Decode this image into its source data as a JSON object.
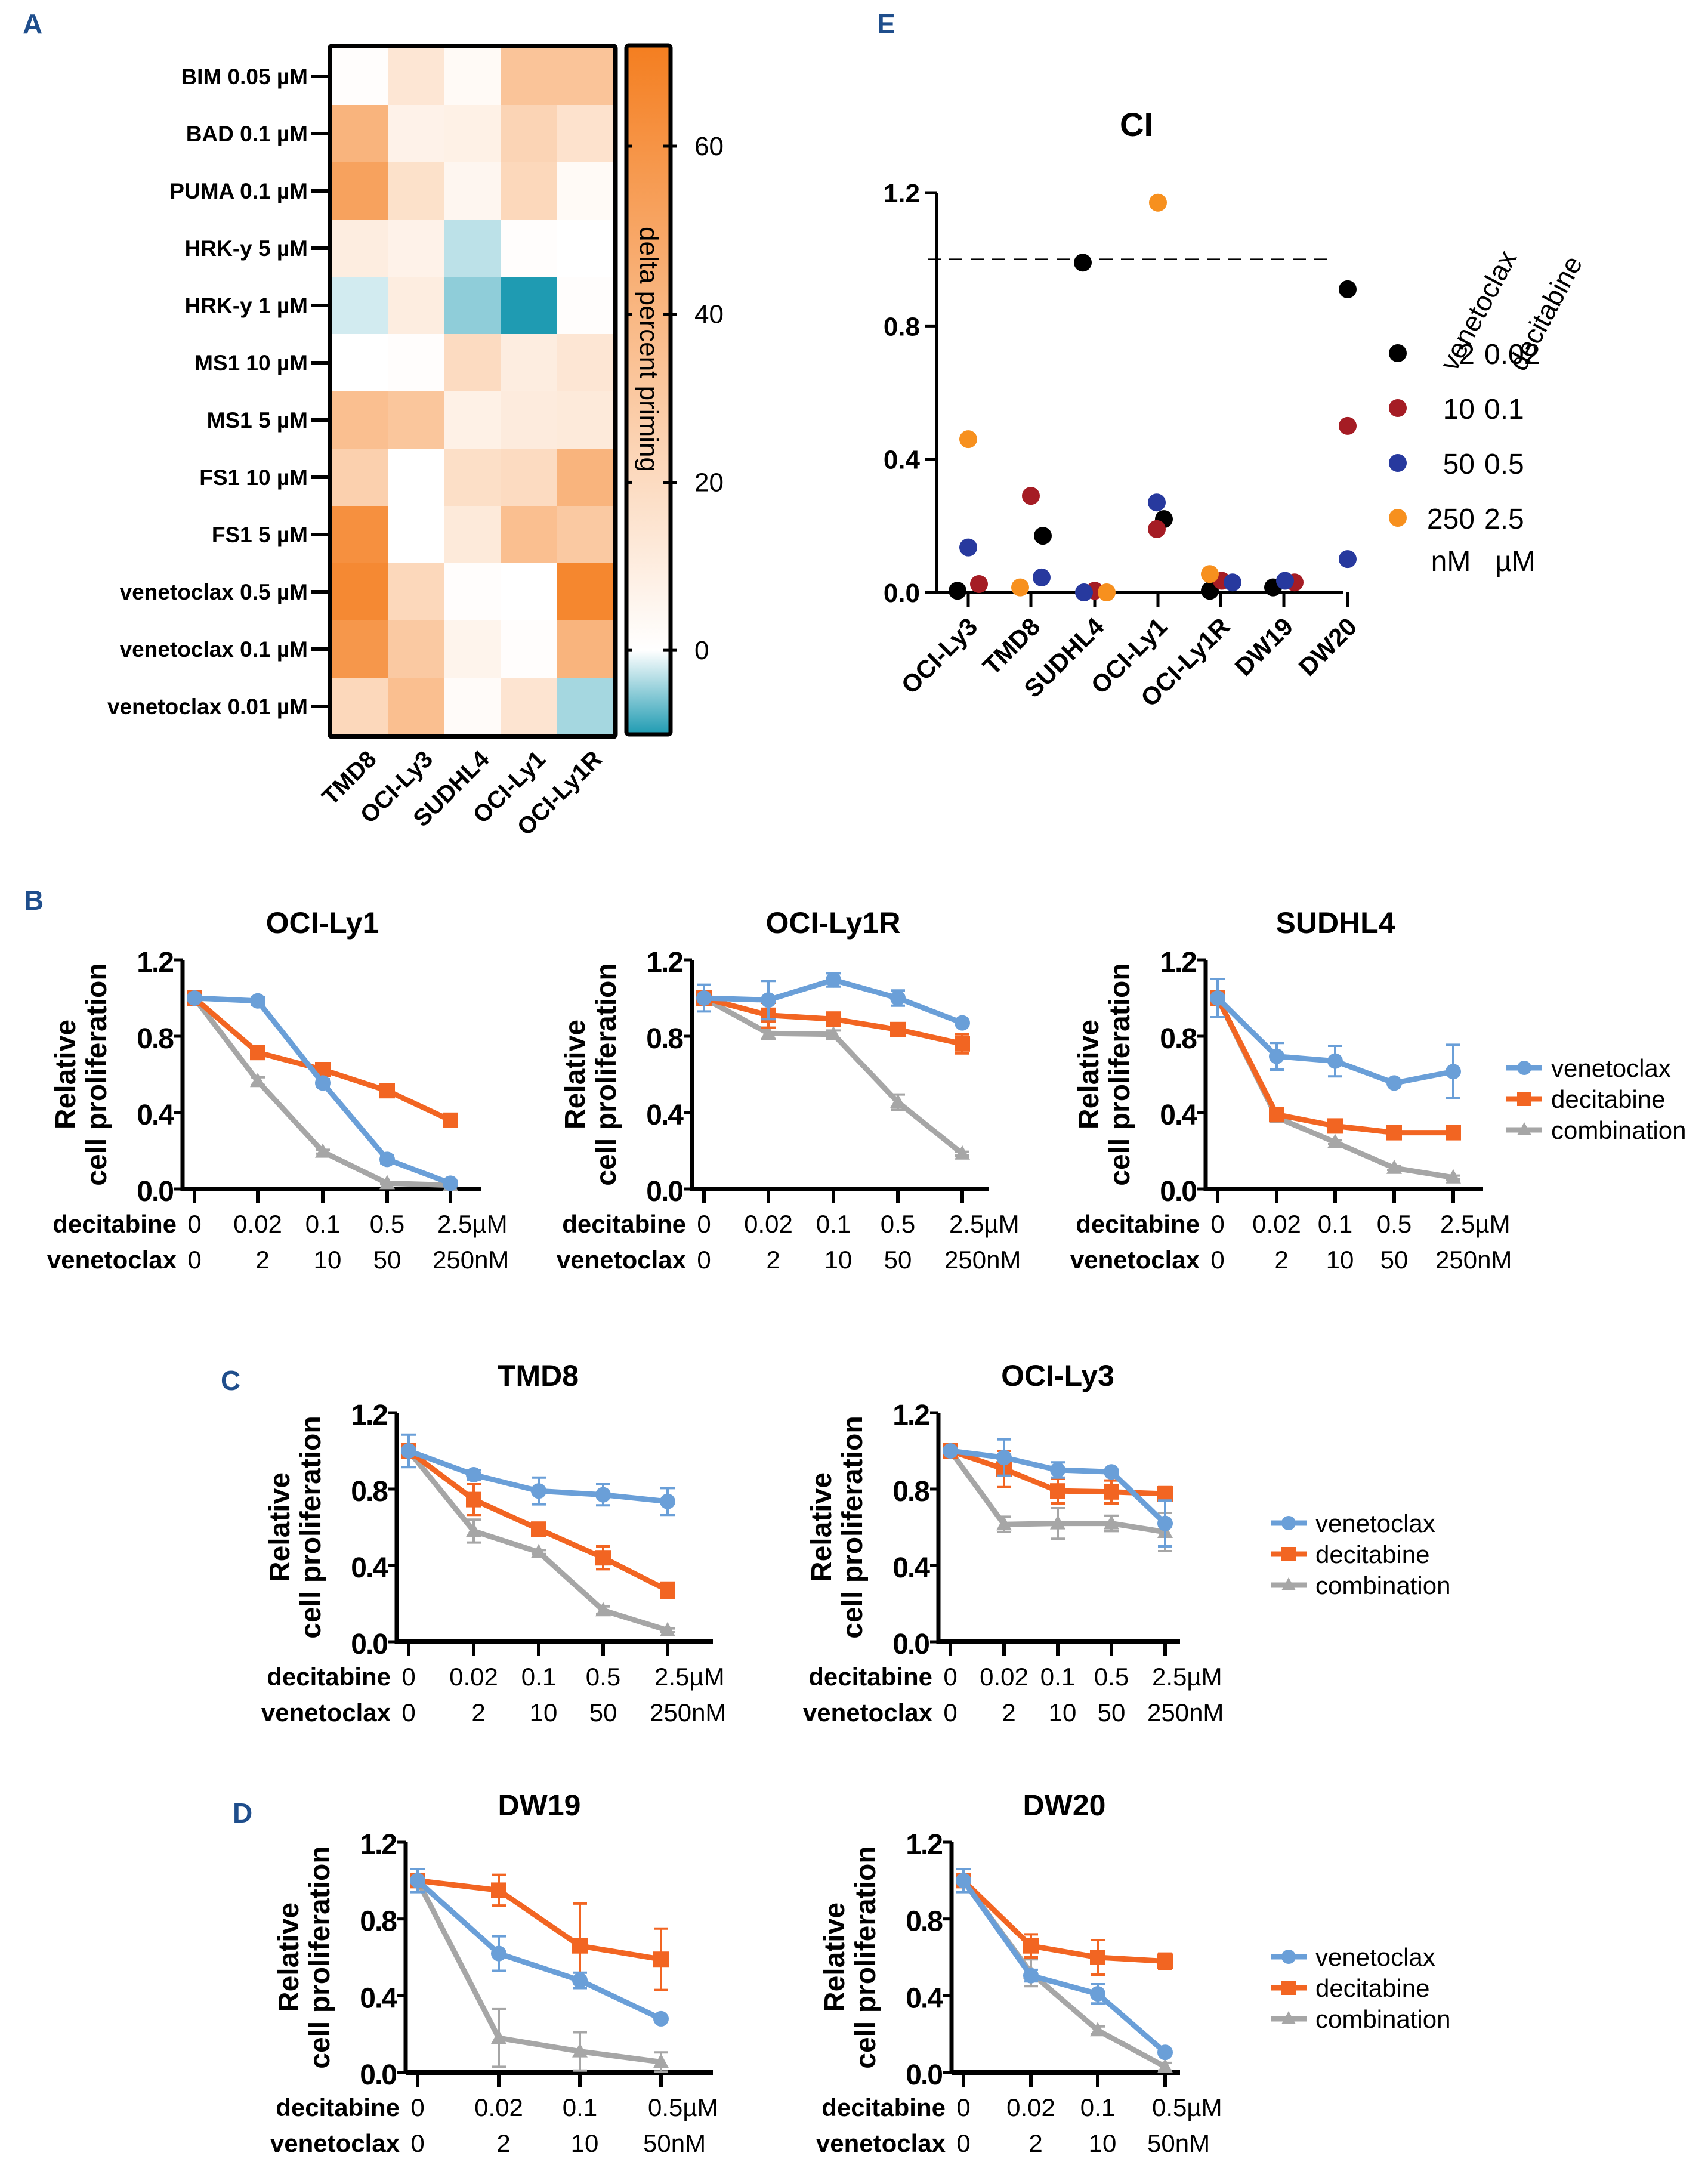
{
  "panel_letters": [
    "A",
    "B",
    "C",
    "D",
    "E"
  ],
  "colors": {
    "venetoclax": "#6a9fd8",
    "decitabine": "#f26522",
    "combination": "#a6a6a6",
    "heat_high": "#f47e20",
    "heat_zero": "#ffffff",
    "heat_low": "#1f9bb2",
    "ci_2": "#000000",
    "ci_10": "#a51c24",
    "ci_50": "#27399e",
    "ci_250": "#f7901e",
    "panel_letter": "#1f4e8c"
  },
  "chart_data": [
    {
      "id": "A",
      "type": "heatmap",
      "title": "",
      "columns": [
        "TMD8",
        "OCI-Ly3",
        "SUDHL4",
        "OCI-Ly1",
        "OCI-Ly1R"
      ],
      "rows": [
        "BIM 0.05 µM",
        "BAD 0.1 µM",
        "PUMA 0.1 µM",
        "HRK-y 5 µM",
        "HRK-y 1 µM",
        "MS1 10 µM",
        "MS1 5 µM",
        "FS1 10 µM",
        "FS1 5 µM",
        "venetoclax 0.5 µM",
        "venetoclax 0.1 µM",
        "venetoclax 0.01 µM"
      ],
      "values": [
        [
          1,
          14,
          3,
          33,
          33
        ],
        [
          42,
          7,
          8,
          24,
          16
        ],
        [
          52,
          17,
          5,
          22,
          3
        ],
        [
          10,
          7,
          -3,
          1,
          0
        ],
        [
          -2,
          10,
          -5,
          -10,
          1
        ],
        [
          0,
          1,
          20,
          10,
          14
        ],
        [
          36,
          32,
          8,
          11,
          12
        ],
        [
          26,
          0,
          18,
          20,
          42
        ],
        [
          62,
          0,
          12,
          36,
          30
        ],
        [
          66,
          22,
          1,
          0,
          67
        ],
        [
          58,
          30,
          6,
          1,
          42
        ],
        [
          22,
          36,
          2,
          15,
          -4
        ]
      ],
      "colorbar": {
        "label": "delta percent priming",
        "ticks": [
          0,
          20,
          40,
          60
        ],
        "range": [
          -10,
          72
        ]
      }
    },
    {
      "id": "E",
      "type": "scatter",
      "title": "CI",
      "categories": [
        "OCI-Ly3",
        "TMD8",
        "SUDHL4",
        "OCI-Ly1",
        "OCI-Ly1R",
        "DW19",
        "DW20"
      ],
      "ylim": [
        0,
        1.2
      ],
      "yticks": [
        "0.0",
        "0.4",
        "0.8",
        "1.2"
      ],
      "reference_line": 1.0,
      "legend_headers": [
        "venetoclax",
        "decitabine"
      ],
      "legend_units": [
        "nM",
        "µM"
      ],
      "series": [
        {
          "name": "2 nM / 0.02 µM",
          "venetoclax": "2",
          "decitabine": "0.02",
          "color_key": "ci_2",
          "values": [
            0.005,
            0.17,
            0.99,
            0.22,
            0.005,
            0.015,
            0.91
          ]
        },
        {
          "name": "10 nM / 0.1 µM",
          "venetoclax": "10",
          "decitabine": "0.1",
          "color_key": "ci_10",
          "values": [
            0.025,
            0.29,
            0.005,
            0.19,
            0.035,
            0.03,
            0.5
          ]
        },
        {
          "name": "50 nM / 0.5 µM",
          "venetoclax": "50",
          "decitabine": "0.5",
          "color_key": "ci_50",
          "values": [
            0.135,
            0.045,
            0.0,
            0.27,
            0.03,
            0.035,
            0.1
          ]
        },
        {
          "name": "250 nM / 2.5 µM",
          "venetoclax": "250",
          "decitabine": "2.5",
          "color_key": "ci_250",
          "values": [
            0.46,
            0.015,
            0.0,
            1.17,
            0.055,
            null,
            null
          ]
        }
      ]
    },
    {
      "id": "B1",
      "panel": "B",
      "type": "line",
      "title": "OCI-Ly1",
      "ylabel": [
        "Relative",
        "cell proliferation"
      ],
      "ylim": [
        0,
        1.2
      ],
      "yticks": [
        "0.0",
        "0.4",
        "0.8",
        "1.2"
      ],
      "row_labels": [
        "decitabine",
        "venetoclax"
      ],
      "x_decitabine": [
        "0",
        "0.02",
        "0.1",
        "0.5",
        "2.5µM"
      ],
      "x_venetoclax": [
        "0",
        "2",
        "10",
        "50",
        "250nM"
      ],
      "legend": false,
      "series": [
        {
          "name": "venetoclax",
          "values": [
            1.0,
            0.985,
            0.555,
            0.155,
            0.03
          ],
          "err": [
            0.01,
            0.02,
            0.02,
            0.02,
            0.01
          ]
        },
        {
          "name": "decitabine",
          "values": [
            1.0,
            0.715,
            0.625,
            0.515,
            0.36
          ],
          "err": [
            0.01,
            0.02,
            0.015,
            0.015,
            0.015
          ]
        },
        {
          "name": "combination",
          "values": [
            1.0,
            0.565,
            0.195,
            0.03,
            0.02
          ],
          "err": [
            0.01,
            0.02,
            0.01,
            0.005,
            0.005
          ]
        }
      ]
    },
    {
      "id": "B2",
      "panel": "B",
      "type": "line",
      "title": "OCI-Ly1R",
      "ylabel": [
        "Relative",
        "cell proliferation"
      ],
      "ylim": [
        0,
        1.2
      ],
      "yticks": [
        "0.0",
        "0.4",
        "0.8",
        "1.2"
      ],
      "row_labels": [
        "decitabine",
        "venetoclax"
      ],
      "x_decitabine": [
        "0",
        "0.02",
        "0.1",
        "0.5",
        "2.5µM"
      ],
      "x_venetoclax": [
        "0",
        "2",
        "10",
        "50",
        "250nM"
      ],
      "legend": false,
      "series": [
        {
          "name": "venetoclax",
          "values": [
            1.0,
            0.99,
            1.095,
            1.0,
            0.87
          ],
          "err": [
            0.07,
            0.1,
            0.035,
            0.04,
            0.005
          ]
        },
        {
          "name": "decitabine",
          "values": [
            1.0,
            0.91,
            0.89,
            0.835,
            0.76
          ],
          "err": [
            0.02,
            0.065,
            0.03,
            0.03,
            0.05
          ]
        },
        {
          "name": "combination",
          "values": [
            1.0,
            0.815,
            0.81,
            0.455,
            0.185
          ],
          "err": [
            0.01,
            0.03,
            0.02,
            0.04,
            0.01
          ]
        }
      ]
    },
    {
      "id": "B3",
      "panel": "B",
      "type": "line",
      "title": "SUDHL4",
      "ylabel": [
        "Relative",
        "cell proliferation"
      ],
      "ylim": [
        0,
        1.2
      ],
      "yticks": [
        "0.0",
        "0.4",
        "0.8",
        "1.2"
      ],
      "row_labels": [
        "decitabine",
        "venetoclax"
      ],
      "x_decitabine": [
        "0",
        "0.02",
        "0.1",
        "0.5",
        "2.5µM"
      ],
      "x_venetoclax": [
        "0",
        "2",
        "10",
        "50",
        "250nM"
      ],
      "legend": true,
      "series": [
        {
          "name": "venetoclax",
          "values": [
            1.0,
            0.695,
            0.67,
            0.555,
            0.615
          ],
          "err": [
            0.1,
            0.07,
            0.08,
            0.01,
            0.14
          ]
        },
        {
          "name": "decitabine",
          "values": [
            1.0,
            0.39,
            0.33,
            0.295,
            0.295
          ],
          "err": [
            0.02,
            0.03,
            0.02,
            0.015,
            0.015
          ]
        },
        {
          "name": "combination",
          "values": [
            1.0,
            0.375,
            0.245,
            0.11,
            0.06
          ],
          "err": [
            0.01,
            0.01,
            0.01,
            0.01,
            0.01
          ]
        }
      ]
    },
    {
      "id": "C1",
      "panel": "C",
      "type": "line",
      "title": "TMD8",
      "ylabel": [
        "Relative",
        "cell proliferation"
      ],
      "ylim": [
        0,
        1.2
      ],
      "yticks": [
        "0.0",
        "0.4",
        "0.8",
        "1.2"
      ],
      "row_labels": [
        "decitabine",
        "venetoclax"
      ],
      "x_decitabine": [
        "0",
        "0.02",
        "0.1",
        "0.5",
        "2.5µM"
      ],
      "x_venetoclax": [
        "0",
        "2",
        "10",
        "50",
        "250nM"
      ],
      "legend": false,
      "series": [
        {
          "name": "venetoclax",
          "values": [
            1.0,
            0.875,
            0.79,
            0.77,
            0.735
          ],
          "err": [
            0.085,
            0.025,
            0.07,
            0.055,
            0.07
          ]
        },
        {
          "name": "decitabine",
          "values": [
            1.0,
            0.745,
            0.59,
            0.44,
            0.27
          ],
          "err": [
            0.02,
            0.08,
            0.015,
            0.06,
            0.04
          ]
        },
        {
          "name": "combination",
          "values": [
            1.0,
            0.58,
            0.47,
            0.165,
            0.06
          ],
          "err": [
            0.01,
            0.06,
            0.01,
            0.02,
            0.01
          ]
        }
      ]
    },
    {
      "id": "C2",
      "panel": "C",
      "type": "line",
      "title": "OCI-Ly3",
      "ylabel": [
        "Relative",
        "cell proliferation"
      ],
      "ylim": [
        0,
        1.2
      ],
      "yticks": [
        "0.0",
        "0.4",
        "0.8",
        "1.2"
      ],
      "row_labels": [
        "decitabine",
        "venetoclax"
      ],
      "x_decitabine": [
        "0",
        "0.02",
        "0.1",
        "0.5",
        "2.5µM"
      ],
      "x_venetoclax": [
        "0",
        "2",
        "10",
        "50",
        "250nM"
      ],
      "legend": true,
      "series": [
        {
          "name": "venetoclax",
          "values": [
            1.0,
            0.965,
            0.9,
            0.89,
            0.62
          ],
          "err": [
            0.01,
            0.095,
            0.04,
            0.01,
            0.12
          ]
        },
        {
          "name": "decitabine",
          "values": [
            1.0,
            0.905,
            0.79,
            0.785,
            0.775
          ],
          "err": [
            0.02,
            0.095,
            0.065,
            0.06,
            0.035
          ]
        },
        {
          "name": "combination",
          "values": [
            1.0,
            0.615,
            0.62,
            0.62,
            0.575
          ],
          "err": [
            0.01,
            0.04,
            0.08,
            0.04,
            0.1
          ]
        }
      ]
    },
    {
      "id": "D1",
      "panel": "D",
      "type": "line",
      "title": "DW19",
      "ylabel": [
        "Relative",
        "cell proliferation"
      ],
      "ylim": [
        0,
        1.2
      ],
      "yticks": [
        "0.0",
        "0.4",
        "0.8",
        "1.2"
      ],
      "row_labels": [
        "decitabine",
        "venetoclax"
      ],
      "x_decitabine": [
        "0",
        "0.02",
        "0.1",
        "0.5µM"
      ],
      "x_venetoclax": [
        "0",
        "2",
        "10",
        "50nM"
      ],
      "legend": false,
      "series": [
        {
          "name": "venetoclax",
          "values": [
            1.0,
            0.62,
            0.48,
            0.28
          ],
          "err": [
            0.06,
            0.09,
            0.04,
            0.01
          ]
        },
        {
          "name": "decitabine",
          "values": [
            1.0,
            0.95,
            0.66,
            0.59
          ],
          "err": [
            0.02,
            0.08,
            0.22,
            0.16
          ]
        },
        {
          "name": "combination",
          "values": [
            1.0,
            0.18,
            0.11,
            0.055
          ],
          "err": [
            0.02,
            0.15,
            0.1,
            0.05
          ]
        }
      ]
    },
    {
      "id": "D2",
      "panel": "D",
      "type": "line",
      "title": "DW20",
      "ylabel": [
        "Relative",
        "cell proliferation"
      ],
      "ylim": [
        0,
        1.2
      ],
      "yticks": [
        "0.0",
        "0.4",
        "0.8",
        "1.2"
      ],
      "row_labels": [
        "decitabine",
        "venetoclax"
      ],
      "x_decitabine": [
        "0",
        "0.02",
        "0.1",
        "0.5µM"
      ],
      "x_venetoclax": [
        "0",
        "2",
        "10",
        "50nM"
      ],
      "legend": true,
      "series": [
        {
          "name": "venetoclax",
          "values": [
            1.0,
            0.505,
            0.41,
            0.105
          ],
          "err": [
            0.06,
            0.03,
            0.05,
            0.01
          ]
        },
        {
          "name": "decitabine",
          "values": [
            1.0,
            0.66,
            0.6,
            0.58
          ],
          "err": [
            0.02,
            0.06,
            0.09,
            0.04
          ]
        },
        {
          "name": "combination",
          "values": [
            1.0,
            0.52,
            0.22,
            0.03
          ],
          "err": [
            0.02,
            0.07,
            0.02,
            0.02
          ]
        }
      ]
    }
  ]
}
